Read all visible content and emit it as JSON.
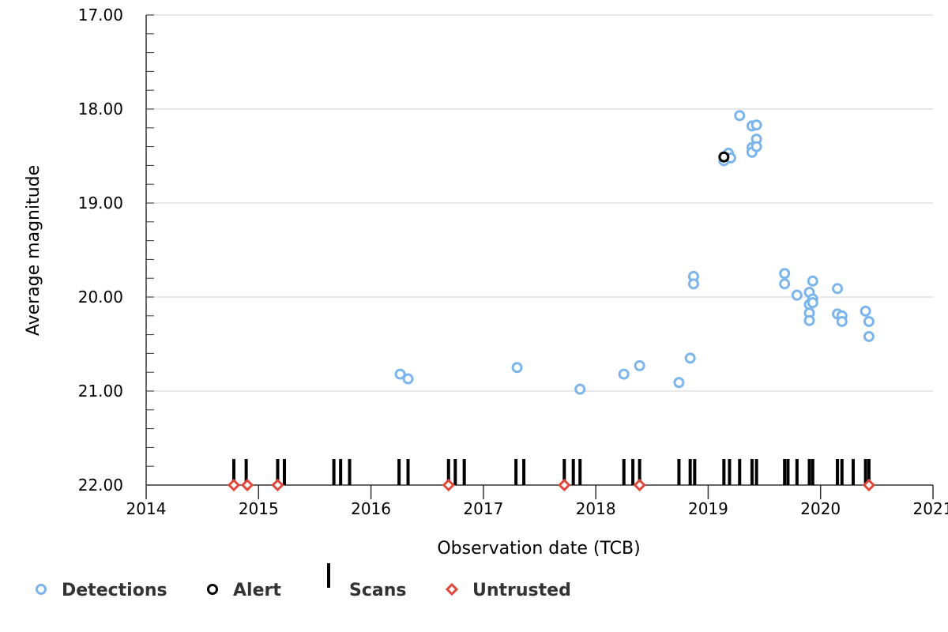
{
  "chart_data": {
    "type": "scatter",
    "title": "",
    "xlabel": "Observation date (TCB)",
    "ylabel": "Average magnitude",
    "xlim": [
      2014.0,
      2021.0
    ],
    "ylim": [
      17.0,
      22.0
    ],
    "y_inverted": true,
    "grid": "horizontal",
    "legend_position": "bottom-left",
    "x_ticks": [
      "2014",
      "2015",
      "2016",
      "2017",
      "2018",
      "2019",
      "2020",
      "2021"
    ],
    "y_ticks": [
      "17.00",
      "18.00",
      "19.00",
      "20.00",
      "21.00",
      "22.00"
    ],
    "colors": {
      "detections": "#7cb5ec",
      "alert": "#000000",
      "scans": "#000000",
      "untrusted": "#e0463a"
    },
    "series": [
      {
        "name": "Detections",
        "points": [
          {
            "x": 2016.26,
            "y": 20.82
          },
          {
            "x": 2016.33,
            "y": 20.87
          },
          {
            "x": 2017.3,
            "y": 20.75
          },
          {
            "x": 2017.86,
            "y": 20.98
          },
          {
            "x": 2018.25,
            "y": 20.82
          },
          {
            "x": 2018.39,
            "y": 20.73
          },
          {
            "x": 2018.74,
            "y": 20.91
          },
          {
            "x": 2018.84,
            "y": 20.65
          },
          {
            "x": 2018.87,
            "y": 19.78
          },
          {
            "x": 2018.87,
            "y": 19.86
          },
          {
            "x": 2019.14,
            "y": 18.55
          },
          {
            "x": 2019.16,
            "y": 18.5
          },
          {
            "x": 2019.18,
            "y": 18.47
          },
          {
            "x": 2019.2,
            "y": 18.52
          },
          {
            "x": 2019.28,
            "y": 18.07
          },
          {
            "x": 2019.39,
            "y": 18.18
          },
          {
            "x": 2019.39,
            "y": 18.41
          },
          {
            "x": 2019.39,
            "y": 18.46
          },
          {
            "x": 2019.43,
            "y": 18.17
          },
          {
            "x": 2019.43,
            "y": 18.32
          },
          {
            "x": 2019.43,
            "y": 18.4
          },
          {
            "x": 2019.68,
            "y": 19.75
          },
          {
            "x": 2019.68,
            "y": 19.86
          },
          {
            "x": 2019.79,
            "y": 19.98
          },
          {
            "x": 2019.9,
            "y": 19.95
          },
          {
            "x": 2019.9,
            "y": 20.08
          },
          {
            "x": 2019.9,
            "y": 20.17
          },
          {
            "x": 2019.9,
            "y": 20.25
          },
          {
            "x": 2019.93,
            "y": 19.83
          },
          {
            "x": 2019.93,
            "y": 20.02
          },
          {
            "x": 2019.93,
            "y": 20.06
          },
          {
            "x": 2020.15,
            "y": 19.91
          },
          {
            "x": 2020.15,
            "y": 20.18
          },
          {
            "x": 2020.19,
            "y": 20.2
          },
          {
            "x": 2020.19,
            "y": 20.26
          },
          {
            "x": 2020.4,
            "y": 20.15
          },
          {
            "x": 2020.43,
            "y": 20.26
          },
          {
            "x": 2020.43,
            "y": 20.42
          }
        ]
      },
      {
        "name": "Alert",
        "points": [
          {
            "x": 2019.14,
            "y": 18.51
          }
        ]
      },
      {
        "name": "Scans",
        "x": [
          2014.78,
          2014.89,
          2015.17,
          2015.23,
          2015.67,
          2015.73,
          2015.81,
          2016.25,
          2016.33,
          2016.69,
          2016.75,
          2016.83,
          2017.29,
          2017.36,
          2017.72,
          2017.8,
          2017.86,
          2018.25,
          2018.33,
          2018.39,
          2018.74,
          2018.84,
          2018.88,
          2019.14,
          2019.19,
          2019.28,
          2019.39,
          2019.43,
          2019.68,
          2019.71,
          2019.79,
          2019.9,
          2019.93,
          2020.15,
          2020.19,
          2020.29,
          2020.4,
          2020.43
        ]
      },
      {
        "name": "Untrusted",
        "points": [
          {
            "x": 2014.78,
            "y": 22.0
          },
          {
            "x": 2014.9,
            "y": 22.0
          },
          {
            "x": 2015.17,
            "y": 22.0
          },
          {
            "x": 2016.69,
            "y": 22.0
          },
          {
            "x": 2017.72,
            "y": 22.0
          },
          {
            "x": 2018.39,
            "y": 22.0
          },
          {
            "x": 2020.43,
            "y": 22.0
          }
        ]
      }
    ],
    "legend": [
      {
        "key": "detections",
        "label": "Detections"
      },
      {
        "key": "alert",
        "label": "Alert"
      },
      {
        "key": "scans",
        "label": "Scans"
      },
      {
        "key": "untrusted",
        "label": "Untrusted"
      }
    ]
  }
}
